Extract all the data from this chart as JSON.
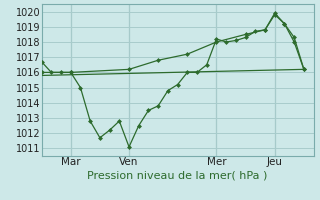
{
  "xlabel": "Pression niveau de la mer( hPa )",
  "background_color": "#cde8e8",
  "grid_color": "#a8cccc",
  "line_color": "#2d6b2d",
  "ylim": [
    1010.5,
    1020.5
  ],
  "yticks": [
    1011,
    1012,
    1013,
    1014,
    1015,
    1016,
    1017,
    1018,
    1019,
    1020
  ],
  "xlim": [
    0,
    28
  ],
  "day_ticks": [
    {
      "x": 3,
      "label": "Mar"
    },
    {
      "x": 9,
      "label": "Ven"
    },
    {
      "x": 18,
      "label": "Mer"
    },
    {
      "x": 24,
      "label": "Jeu"
    }
  ],
  "series_main": {
    "x": [
      0,
      1,
      2,
      3,
      4,
      5,
      6,
      7,
      8,
      9,
      10,
      11,
      12,
      13,
      14,
      15,
      16,
      17,
      18,
      19,
      20,
      21,
      22,
      23,
      24,
      25,
      26,
      27
    ],
    "y": [
      1016.7,
      1016.0,
      1016.0,
      1016.0,
      1015.0,
      1012.8,
      1011.7,
      1012.2,
      1012.8,
      1011.1,
      1012.5,
      1013.5,
      1013.8,
      1014.8,
      1015.2,
      1016.0,
      1016.0,
      1016.5,
      1018.2,
      1018.0,
      1018.1,
      1018.3,
      1018.7,
      1018.8,
      1019.9,
      1019.2,
      1018.0,
      1016.2
    ]
  },
  "series_smooth": {
    "x": [
      0,
      3,
      9,
      12,
      15,
      18,
      21,
      23,
      24,
      25,
      26,
      27
    ],
    "y": [
      1016.0,
      1016.0,
      1016.2,
      1016.8,
      1017.2,
      1018.0,
      1018.5,
      1018.8,
      1019.8,
      1019.2,
      1018.3,
      1016.2
    ]
  },
  "series_baseline": {
    "x": [
      0,
      27
    ],
    "y": [
      1015.8,
      1016.2
    ]
  }
}
